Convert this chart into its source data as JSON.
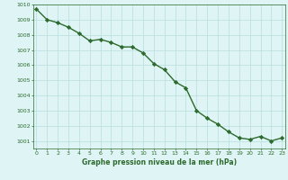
{
  "x": [
    0,
    1,
    2,
    3,
    4,
    5,
    6,
    7,
    8,
    9,
    10,
    11,
    12,
    13,
    14,
    15,
    16,
    17,
    18,
    19,
    20,
    21,
    22,
    23
  ],
  "y": [
    1009.7,
    1009.0,
    1008.8,
    1008.5,
    1008.1,
    1007.6,
    1007.7,
    1007.5,
    1007.2,
    1007.2,
    1006.8,
    1006.1,
    1005.7,
    1004.9,
    1004.5,
    1003.0,
    1002.5,
    1002.1,
    1001.6,
    1001.2,
    1001.1,
    1001.3,
    1001.0,
    1001.2
  ],
  "line_color": "#2d6a2d",
  "marker_color": "#2d6a2d",
  "bg_color": "#dff5f5",
  "grid_color": "#b8dede",
  "xlabel": "Graphe pression niveau de la mer (hPa)",
  "xlabel_color": "#2d6a2d",
  "tick_color": "#2d6a2d",
  "ylim_min": 1000.5,
  "ylim_max": 1010.0,
  "xlim_min": -0.3,
  "xlim_max": 23.3,
  "yticks": [
    1001,
    1002,
    1003,
    1004,
    1005,
    1006,
    1007,
    1008,
    1009,
    1010
  ],
  "xticks": [
    0,
    1,
    2,
    3,
    4,
    5,
    6,
    7,
    8,
    9,
    10,
    11,
    12,
    13,
    14,
    15,
    16,
    17,
    18,
    19,
    20,
    21,
    22,
    23
  ],
  "marker": "D",
  "marker_size": 2.2,
  "line_width": 1.0,
  "tick_fontsize": 4.5,
  "xlabel_fontsize": 5.5
}
